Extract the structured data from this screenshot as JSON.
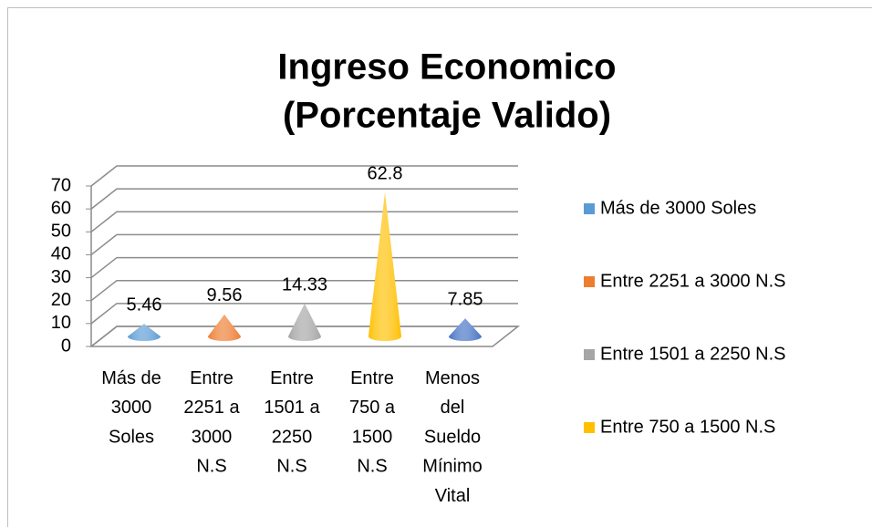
{
  "chart_data": {
    "type": "cone3d",
    "title": [
      "Ingreso Economico",
      "(Porcentaje Valido)"
    ],
    "categories": [
      "Más de 3000 Soles",
      "Entre 2251 a 3000 N.S",
      "Entre 1501 a 2250 N.S",
      "Entre 750 a 1500 N.S",
      "Menos del Sueldo Mínimo Vital"
    ],
    "values": [
      5.46,
      9.56,
      14.33,
      62.8,
      7.85
    ],
    "colors": [
      "#5b9bd5",
      "#ed7d31",
      "#a5a5a5",
      "#ffc000",
      "#4472c4"
    ],
    "ylim": [
      0,
      70
    ],
    "yticks": [
      0,
      10,
      20,
      30,
      40,
      50,
      60,
      70
    ],
    "grid": true,
    "legend": "right"
  }
}
